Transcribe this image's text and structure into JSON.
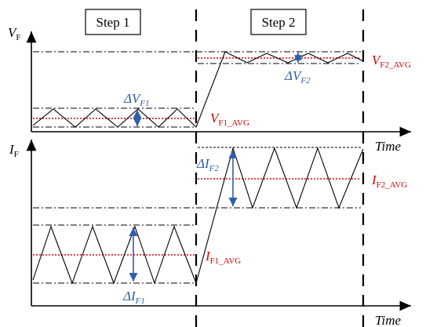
{
  "steps": {
    "step1": "Step 1",
    "step2": "Step 2"
  },
  "axes": {
    "vf_main": "V",
    "vf_sub": "F",
    "if_main": "I",
    "if_sub": "F",
    "time_top": "Time",
    "time_bottom": "Time"
  },
  "annotations": {
    "dvf1_main": "ΔV",
    "dvf1_sub": "F1",
    "dvf2_main": "ΔV",
    "dvf2_sub": "F2",
    "vf1avg_main": "V",
    "vf1avg_sub": "F1_AVG",
    "vf2avg_main": "V",
    "vf2avg_sub": "F2_AVG",
    "dif1_main": "ΔI",
    "dif1_sub": "F1",
    "dif2_main": "ΔI",
    "dif2_sub": "F2",
    "if1avg_main": "I",
    "if1avg_sub": "F1_AVG",
    "if2avg_main": "I",
    "if2avg_sub": "F2_AVG"
  },
  "colors": {
    "line": "#000000",
    "avg": "#e00000",
    "arrow": "#2e5ea8",
    "label_red": "#e00000",
    "label_blue": "#2e5ea8"
  }
}
